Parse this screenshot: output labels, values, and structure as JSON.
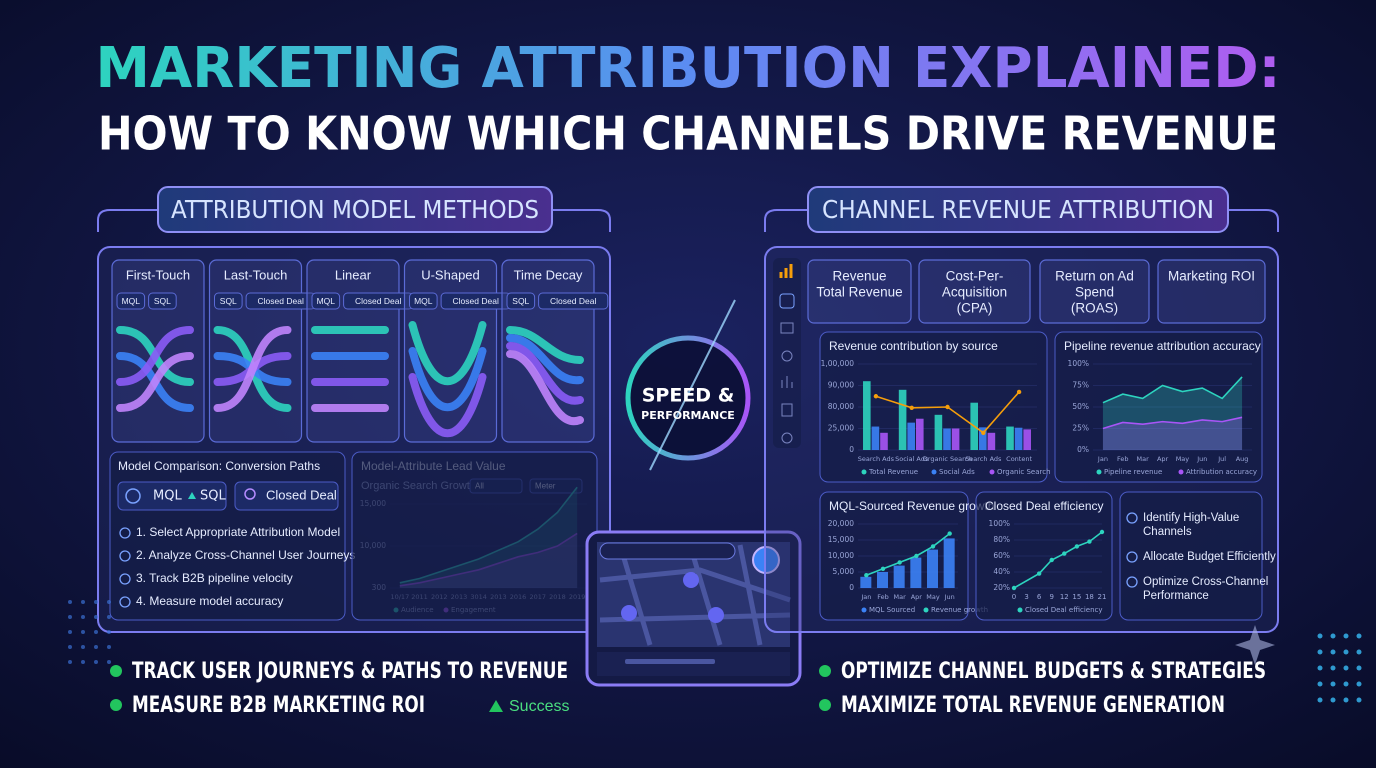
{
  "header": {
    "title": "MARKETING ATTRIBUTION EXPLAINED:",
    "subtitle": "HOW TO KNOW WHICH CHANNELS DRIVE REVENUE"
  },
  "left": {
    "title": "ATTRIBUTION MODEL METHODS",
    "models": [
      {
        "name": "First-Touch",
        "tags": [
          "MQL",
          "SQL"
        ]
      },
      {
        "name": "Last-Touch",
        "tags": [
          "SQL",
          "Closed Deal"
        ]
      },
      {
        "name": "Linear",
        "tags": [
          "MQL",
          "Closed Deal"
        ]
      },
      {
        "name": "U-Shaped",
        "tags": [
          "MQL",
          "Closed Deal"
        ]
      },
      {
        "name": "Time Decay",
        "tags": [
          "SQL",
          "Closed Deal"
        ]
      }
    ],
    "comparison": {
      "title": "Model Comparison: Conversion Paths",
      "from": "MQL",
      "to": "SQL",
      "closed": "Closed Deal",
      "steps": [
        "1. Select Appropriate Attribution Model",
        "2. Analyze Cross-Channel User Journeys",
        "3. Track B2B pipeline velocity",
        "4. Measure model accuracy"
      ]
    },
    "lead_chart": {
      "type": "area",
      "title": "Model-Attribute Lead Value",
      "subtitle": "Organic Search Growth",
      "filters": [
        "All",
        "Meter"
      ],
      "categories": [
        "10/17",
        "2011",
        "2012",
        "2013",
        "3014",
        "2013",
        "2016",
        "2017",
        "2018",
        "2019"
      ],
      "yticks": [
        300,
        {
          "value": 10000,
          "label": "10,000"
        },
        {
          "value": 15000,
          "label": "15,000"
        }
      ],
      "series": [
        {
          "name": "Audience",
          "color": "#2dd4bf",
          "values": [
            1500,
            2500,
            4000,
            5500,
            7000,
            9000,
            10500,
            12000,
            14000,
            17000
          ]
        },
        {
          "name": "Engagement",
          "color": "#a855f7",
          "values": [
            800,
            1500,
            2500,
            3500,
            4500,
            6000,
            7500,
            8500,
            10000,
            11500
          ]
        }
      ]
    }
  },
  "center": {
    "line1": "SPEED &",
    "line2": "PERFORMANCE"
  },
  "right": {
    "title": "CHANNEL REVENUE ATTRIBUTION",
    "kpis": [
      [
        "Revenue",
        "Total Revenue"
      ],
      [
        "Cost-Per-",
        "Acquisition",
        "(CPA)"
      ],
      [
        "Return on Ad",
        "Spend",
        "(ROAS)"
      ],
      [
        "Marketing ROI"
      ]
    ],
    "charts": [
      {
        "type": "bar",
        "title": "Revenue contribution by source",
        "categories": [
          "Search Ads",
          "Social Ads",
          "Organic Search",
          "Search Ads",
          "Content"
        ],
        "yticks": [
          0,
          {
            "value": 25000,
            "label": "25,000"
          },
          {
            "value": 80000,
            "label": "80,000"
          },
          {
            "value": 90000,
            "label": "90,000"
          },
          {
            "value": 100000,
            "label": "1,00,000"
          }
        ],
        "series": [
          {
            "name": "Total Revenue",
            "color": "#2dd4bf",
            "values": [
              92000,
              88000,
              60000,
              82000,
              30000
            ]
          },
          {
            "name": "Social Ads",
            "color": "#3b82f6",
            "values": [
              30000,
              40000,
              25000,
              28000,
              27000
            ]
          },
          {
            "name": "Organic Search",
            "color": "#a855f7",
            "values": [
              20000,
              50000,
              25000,
              20000,
              24000
            ]
          },
          {
            "type": "line",
            "color": "#f59e0b",
            "values": [
              85000,
              78000,
              80000,
              20000,
              87000
            ]
          }
        ]
      },
      {
        "type": "area",
        "title": "Pipeline revenue attribution accuracy",
        "categories": [
          "Jan",
          "Feb",
          "Mar",
          "Apr",
          "May",
          "Jun",
          "Jul",
          "Aug"
        ],
        "yticks": [
          {
            "value": 0,
            "label": "0%"
          },
          {
            "value": 25,
            "label": "25%"
          },
          {
            "value": 50,
            "label": "50%"
          },
          {
            "value": 75,
            "label": "75%"
          },
          {
            "value": 100,
            "label": "100%"
          }
        ],
        "series": [
          {
            "name": "Pipeline revenue",
            "color": "#2dd4bf",
            "values": [
              55,
              65,
              60,
              75,
              68,
              72,
              60,
              85
            ]
          },
          {
            "name": "Attribution accuracy",
            "color": "#a855f7",
            "values": [
              25,
              32,
              30,
              33,
              31,
              35,
              33,
              38
            ]
          }
        ]
      },
      {
        "type": "bar",
        "title": "MQL-Sourced Revenue growth",
        "categories": [
          "Jan",
          "Feb",
          "Mar",
          "Apr",
          "May",
          "Jun"
        ],
        "yticks": [
          0,
          {
            "value": 5000,
            "label": "5,000"
          },
          {
            "value": 10000,
            "label": "10,000"
          },
          {
            "value": 15000,
            "label": "15,000"
          },
          {
            "value": 20000,
            "label": "20,000"
          }
        ],
        "series": [
          {
            "name": "MQL Sourced",
            "color": "#3b82f6",
            "values": [
              3500,
              5000,
              7000,
              9500,
              12000,
              15500
            ]
          },
          {
            "name": "Revenue growth",
            "type": "line",
            "color": "#2dd4bf",
            "values": [
              4000,
              6000,
              8000,
              10000,
              13000,
              17000
            ]
          }
        ]
      },
      {
        "type": "line",
        "title": "Closed Deal efficiency",
        "x": [
          0,
          6,
          9,
          12,
          15,
          18,
          21
        ],
        "xlim": [
          0,
          21
        ],
        "xticks": [
          0,
          3,
          6,
          9,
          12,
          15,
          18,
          21
        ],
        "yticks": [
          {
            "value": 20,
            "label": "20%"
          },
          {
            "value": 40,
            "label": "40%"
          },
          {
            "value": 60,
            "label": "60%"
          },
          {
            "value": 80,
            "label": "80%"
          },
          {
            "value": 100,
            "label": "100%"
          }
        ],
        "series": [
          {
            "name": "Closed Deal efficiency",
            "color": "#2dd4bf",
            "values": [
              20,
              38,
              55,
              63,
              72,
              78,
              90
            ]
          }
        ]
      }
    ],
    "checklist": [
      [
        "Identify High-Value",
        "Channels"
      ],
      [
        "Allocate Budget Efficiently"
      ],
      [
        "Optimize Cross-Channel",
        "Performance"
      ]
    ]
  },
  "bullets": {
    "left": [
      "TRACK USER JOURNEYS & PATHS TO REVENUE",
      "MEASURE B2B MARKETING ROI"
    ],
    "status": "Success",
    "right": [
      "OPTIMIZE CHANNEL BUDGETS & STRATEGIES",
      "MAXIMIZE TOTAL REVENUE GENERATION"
    ]
  }
}
